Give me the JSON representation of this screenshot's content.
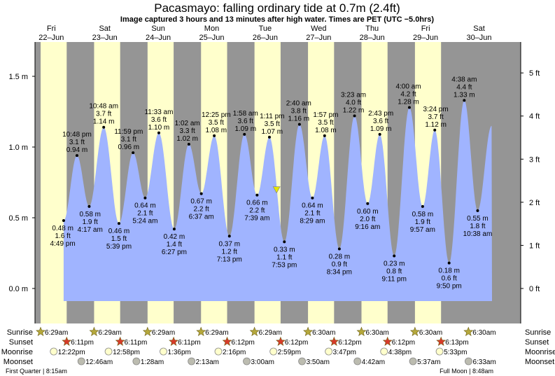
{
  "title": "Pacasmayo: falling  ordinary tide at 0.7m (2.4ft)",
  "subtitle": "Image captured 3 hours and 13 minutes after high water. Times are PET (UTC −5.0hrs)",
  "colors": {
    "night": "#959595",
    "day": "#ffffcc",
    "tide": "#a0b4ff",
    "day_label": "#cc0000",
    "current_marker": "#e6e600",
    "sunrise_icon": "#b5a83c",
    "sunset_icon": "#d83a2a",
    "moonrise_icon": "#ffffcc",
    "moonset_icon": "#bcbcb0"
  },
  "chart_data": {
    "type": "area",
    "title": "Pacasmayo: falling  ordinary tide at 0.7m (2.4ft)",
    "y_left_unit": "m",
    "y_right_unit": "ft",
    "ylim_m": [
      -0.09,
      1.76
    ],
    "grid": false,
    "yticks_left": [
      {
        "v": 0.0,
        "label": "0.0 m"
      },
      {
        "v": 0.5,
        "label": "0.5 m"
      },
      {
        "v": 1.0,
        "label": "1.0 m"
      },
      {
        "v": 1.5,
        "label": "1.5 m"
      }
    ],
    "yticks_right": [
      {
        "v": 0,
        "label": "0 ft"
      },
      {
        "v": 1,
        "label": "1 ft"
      },
      {
        "v": 2,
        "label": "2 ft"
      },
      {
        "v": 3,
        "label": "3 ft"
      },
      {
        "v": 4,
        "label": "4 ft"
      },
      {
        "v": 5,
        "label": "5 ft"
      }
    ],
    "days": [
      {
        "dow": "Fri",
        "date": "22–Jun"
      },
      {
        "dow": "Sat",
        "date": "23–Jun"
      },
      {
        "dow": "Sun",
        "date": "24–Jun"
      },
      {
        "dow": "Mon",
        "date": "25–Jun"
      },
      {
        "dow": "Tue",
        "date": "26–Jun"
      },
      {
        "dow": "Wed",
        "date": "27–Jun"
      },
      {
        "dow": "Thu",
        "date": "28–Jun"
      },
      {
        "dow": "Fri",
        "date": "29–Jun"
      },
      {
        "dow": "Sat",
        "date": "30–Jun"
      }
    ],
    "extremes": [
      {
        "day": 0,
        "time": "4:49 pm",
        "m": "0.48 m",
        "ft": "1.6 ft",
        "type": "low"
      },
      {
        "day": 0,
        "time": "10:48 pm",
        "m": "0.94 m",
        "ft": "3.1 ft",
        "type": "high"
      },
      {
        "day": 1,
        "time": "4:17 am",
        "m": "0.58 m",
        "ft": "1.9 ft",
        "type": "low"
      },
      {
        "day": 1,
        "time": "10:48 am",
        "m": "1.14 m",
        "ft": "3.7 ft",
        "type": "high"
      },
      {
        "day": 1,
        "time": "5:39 pm",
        "m": "0.46 m",
        "ft": "1.5 ft",
        "type": "low"
      },
      {
        "day": 1,
        "time": "11:59 pm",
        "m": "0.96 m",
        "ft": "3.1 ft",
        "type": "high"
      },
      {
        "day": 2,
        "time": "5:24 am",
        "m": "0.64 m",
        "ft": "2.1 ft",
        "type": "low"
      },
      {
        "day": 2,
        "time": "11:33 am",
        "m": "1.10 m",
        "ft": "3.6 ft",
        "type": "high"
      },
      {
        "day": 2,
        "time": "6:27 pm",
        "m": "0.42 m",
        "ft": "1.4 ft",
        "type": "low"
      },
      {
        "day": 3,
        "time": "1:02 am",
        "m": "1.02 m",
        "ft": "3.3 ft",
        "type": "high"
      },
      {
        "day": 3,
        "time": "6:37 am",
        "m": "0.67 m",
        "ft": "2.2 ft",
        "type": "low"
      },
      {
        "day": 3,
        "time": "12:25 pm",
        "m": "1.08 m",
        "ft": "3.5 ft",
        "type": "high"
      },
      {
        "day": 3,
        "time": "7:13 pm",
        "m": "0.37 m",
        "ft": "1.2 ft",
        "type": "low"
      },
      {
        "day": 4,
        "time": "1:58 am",
        "m": "1.09 m",
        "ft": "3.6 ft",
        "type": "high"
      },
      {
        "day": 4,
        "time": "7:39 am",
        "m": "0.66 m",
        "ft": "2.2 ft",
        "type": "low"
      },
      {
        "day": 4,
        "time": "1:11 pm",
        "m": "1.07 m",
        "ft": "3.5 ft",
        "type": "high"
      },
      {
        "day": 4,
        "time": "7:53 pm",
        "m": "0.33 m",
        "ft": "1.1 ft",
        "type": "low"
      },
      {
        "day": 5,
        "time": "2:40 am",
        "m": "1.16 m",
        "ft": "3.8 ft",
        "type": "high"
      },
      {
        "day": 5,
        "time": "8:29 am",
        "m": "0.64 m",
        "ft": "2.1 ft",
        "type": "low"
      },
      {
        "day": 5,
        "time": "1:57 pm",
        "m": "1.08 m",
        "ft": "3.5 ft",
        "type": "high"
      },
      {
        "day": 5,
        "time": "8:34 pm",
        "m": "0.28 m",
        "ft": "0.9 ft",
        "type": "low"
      },
      {
        "day": 6,
        "time": "3:23 am",
        "m": "1.22 m",
        "ft": "4.0 ft",
        "type": "high"
      },
      {
        "day": 6,
        "time": "9:16 am",
        "m": "0.60 m",
        "ft": "2.0 ft",
        "type": "low"
      },
      {
        "day": 6,
        "time": "2:43 pm",
        "m": "1.09 m",
        "ft": "3.6 ft",
        "type": "high"
      },
      {
        "day": 6,
        "time": "9:11 pm",
        "m": "0.23 m",
        "ft": "0.8 ft",
        "type": "low"
      },
      {
        "day": 7,
        "time": "4:00 am",
        "m": "1.28 m",
        "ft": "4.2 ft",
        "type": "high"
      },
      {
        "day": 7,
        "time": "9:57 am",
        "m": "0.58 m",
        "ft": "1.9 ft",
        "type": "low"
      },
      {
        "day": 7,
        "time": "3:24 pm",
        "m": "1.12 m",
        "ft": "3.7 ft",
        "type": "high"
      },
      {
        "day": 7,
        "time": "9:50 pm",
        "m": "0.18 m",
        "ft": "0.6 ft",
        "type": "low"
      },
      {
        "day": 8,
        "time": "4:38 am",
        "m": "1.33 m",
        "ft": "4.4 ft",
        "type": "high"
      },
      {
        "day": 8,
        "time": "10:38 am",
        "m": "0.55 m",
        "ft": "1.8 ft",
        "type": "low"
      }
    ],
    "current": {
      "day": 4,
      "time": "4:24 pm",
      "m": 0.7,
      "ft": 2.4,
      "trend": "falling"
    }
  },
  "almanac": {
    "labels": {
      "sunrise": "Sunrise",
      "sunset": "Sunset",
      "moonrise": "Moonrise",
      "moonset": "Moonset"
    },
    "sunrise": [
      {
        "day": 0,
        "time": "6:29am"
      },
      {
        "day": 1,
        "time": "6:29am"
      },
      {
        "day": 2,
        "time": "6:29am"
      },
      {
        "day": 3,
        "time": "6:29am"
      },
      {
        "day": 4,
        "time": "6:29am"
      },
      {
        "day": 5,
        "time": "6:30am"
      },
      {
        "day": 6,
        "time": "6:30am"
      },
      {
        "day": 7,
        "time": "6:30am"
      },
      {
        "day": 8,
        "time": "6:30am"
      }
    ],
    "sunset": [
      {
        "day": 0,
        "time": "6:11pm"
      },
      {
        "day": 1,
        "time": "6:11pm"
      },
      {
        "day": 2,
        "time": "6:11pm"
      },
      {
        "day": 3,
        "time": "6:12pm"
      },
      {
        "day": 4,
        "time": "6:12pm"
      },
      {
        "day": 5,
        "time": "6:12pm"
      },
      {
        "day": 6,
        "time": "6:12pm"
      },
      {
        "day": 7,
        "time": "6:13pm"
      }
    ],
    "moonrise": [
      {
        "day": 0,
        "time": "12:22pm"
      },
      {
        "day": 1,
        "time": "12:58pm"
      },
      {
        "day": 2,
        "time": "1:36pm"
      },
      {
        "day": 3,
        "time": "2:16pm"
      },
      {
        "day": 4,
        "time": "2:59pm"
      },
      {
        "day": 5,
        "time": "3:47pm"
      },
      {
        "day": 6,
        "time": "4:38pm"
      },
      {
        "day": 7,
        "time": "5:33pm"
      }
    ],
    "moonset": [
      {
        "day": 1,
        "time": "12:46am"
      },
      {
        "day": 2,
        "time": "1:28am"
      },
      {
        "day": 3,
        "time": "2:13am"
      },
      {
        "day": 4,
        "time": "3:00am"
      },
      {
        "day": 5,
        "time": "3:50am"
      },
      {
        "day": 6,
        "time": "4:42am"
      },
      {
        "day": 7,
        "time": "5:37am"
      },
      {
        "day": 8,
        "time": "6:33am"
      }
    ],
    "phases": [
      {
        "text": "First Quarter | 8:15am",
        "position": "left"
      },
      {
        "text": "Full Moon | 8:48am",
        "position": "right"
      }
    ]
  }
}
